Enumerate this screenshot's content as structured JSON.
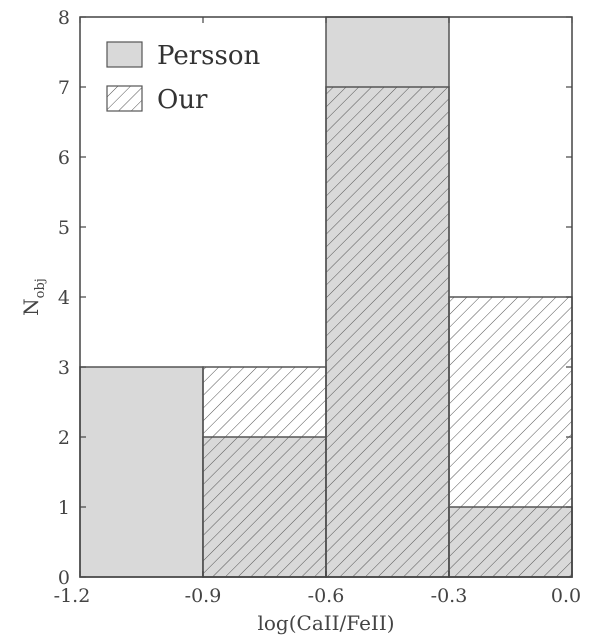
{
  "chart_data": {
    "type": "bar",
    "subtype": "overlaid-histogram",
    "bin_edges": [
      -1.2,
      -0.9,
      -0.6,
      -0.3,
      0.0
    ],
    "categories": [
      "-1.2 to -0.9",
      "-0.9 to -0.6",
      "-0.6 to -0.3",
      "-0.3 to 0.0"
    ],
    "series": [
      {
        "name": "Persson",
        "values": [
          3,
          2,
          8,
          1
        ],
        "fill": "solid",
        "color": "#d9d9d9"
      },
      {
        "name": "Our",
        "values": [
          0,
          3,
          7,
          4
        ],
        "fill": "hatch",
        "color": "#555555"
      }
    ],
    "title": "",
    "xlabel": "log(CaII/FeII)",
    "ylabel_main": "N",
    "ylabel_sub": "obj",
    "xlim": [
      -1.2,
      0.0
    ],
    "ylim": [
      0,
      8
    ],
    "x_tick_labels": [
      "-1.2",
      "-0.9",
      "-0.6",
      "-0.3",
      "0.0"
    ],
    "y_tick_labels": [
      "0",
      "1",
      "2",
      "3",
      "4",
      "5",
      "6",
      "7",
      "8"
    ],
    "grid": false,
    "legend_position": "top-left"
  }
}
